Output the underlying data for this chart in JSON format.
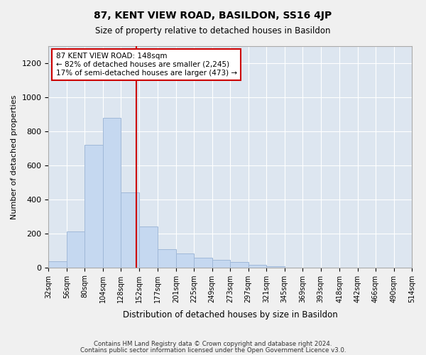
{
  "title": "87, KENT VIEW ROAD, BASILDON, SS16 4JP",
  "subtitle": "Size of property relative to detached houses in Basildon",
  "xlabel": "Distribution of detached houses by size in Basildon",
  "ylabel": "Number of detached properties",
  "footer1": "Contains HM Land Registry data © Crown copyright and database right 2024.",
  "footer2": "Contains public sector information licensed under the Open Government Licence v3.0.",
  "bar_color": "#c5d8f0",
  "bar_edgecolor": "#a0b8d8",
  "red_line_color": "#cc0000",
  "annotation_text1": "87 KENT VIEW ROAD: 148sqm",
  "annotation_text2": "← 82% of detached houses are smaller (2,245)",
  "annotation_text3": "17% of semi-detached houses are larger (473) →",
  "property_size": 148,
  "bins": [
    32,
    56,
    80,
    104,
    128,
    152,
    177,
    201,
    225,
    249,
    273,
    297,
    321,
    345,
    369,
    393,
    418,
    442,
    466,
    490,
    514
  ],
  "bin_labels": [
    "32sqm",
    "56sqm",
    "80sqm",
    "104sqm",
    "128sqm",
    "152sqm",
    "177sqm",
    "201sqm",
    "225sqm",
    "249sqm",
    "273sqm",
    "297sqm",
    "321sqm",
    "345sqm",
    "369sqm",
    "393sqm",
    "418sqm",
    "442sqm",
    "466sqm",
    "490sqm",
    "514sqm"
  ],
  "counts": [
    35,
    210,
    720,
    880,
    440,
    240,
    105,
    80,
    55,
    45,
    30,
    15,
    5,
    0,
    0,
    0,
    0,
    0,
    0,
    0
  ],
  "ylim": [
    0,
    1300
  ],
  "yticks": [
    0,
    200,
    400,
    600,
    800,
    1000,
    1200
  ],
  "bg_color": "#dde6f0",
  "grid_color": "#ffffff",
  "fig_bg_color": "#f0f0f0"
}
